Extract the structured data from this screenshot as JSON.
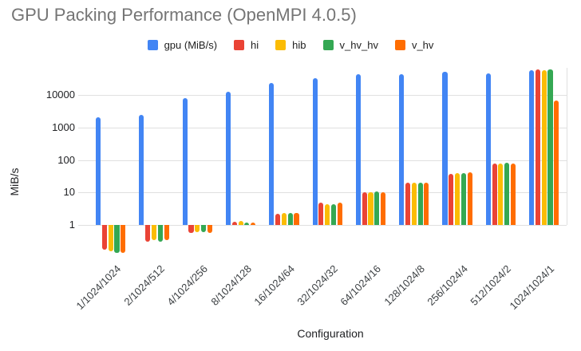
{
  "chart_data": {
    "type": "bar",
    "title": "GPU Packing Performance (OpenMPI 4.0.5)",
    "xlabel": "Configuration",
    "ylabel": "MiB/s",
    "y_scale": "log",
    "y_ticks": [
      1,
      10,
      100,
      1000,
      10000
    ],
    "ylim": [
      0.12,
      68000
    ],
    "grid": "horizontal",
    "legend_position": "top",
    "categories": [
      "1/1024/1024",
      "2/1024/512",
      "4/1024/256",
      "8/1024/128",
      "16/1024/64",
      "32/1024/32",
      "64/1024/16",
      "128/1024/8",
      "256/1024/4",
      "512/1024/2",
      "1024/1024/1"
    ],
    "series": [
      {
        "name": "gpu (MiB/s)",
        "color": "#4285F4",
        "values": [
          2100,
          2500,
          8000,
          12500,
          23500,
          33000,
          43500,
          44500,
          52000,
          45500,
          57000
        ]
      },
      {
        "name": "hi",
        "color": "#EA4335",
        "values": [
          0.17,
          0.31,
          0.58,
          1.25,
          2.2,
          5.0,
          10.0,
          20,
          38,
          77,
          60000
        ]
      },
      {
        "name": "hib",
        "color": "#FBBC04",
        "values": [
          0.155,
          0.35,
          0.62,
          1.3,
          2.3,
          4.4,
          10.0,
          20.5,
          40,
          78,
          57000
        ]
      },
      {
        "name": "v_hv_hv",
        "color": "#34A853",
        "values": [
          0.135,
          0.3,
          0.62,
          1.2,
          2.4,
          4.4,
          10.5,
          20,
          40,
          80,
          61000
        ]
      },
      {
        "name": "v_hv",
        "color": "#FF6D01",
        "values": [
          0.135,
          0.35,
          0.58,
          1.2,
          2.3,
          4.8,
          10.0,
          20.5,
          41,
          78,
          6800
        ]
      }
    ]
  }
}
